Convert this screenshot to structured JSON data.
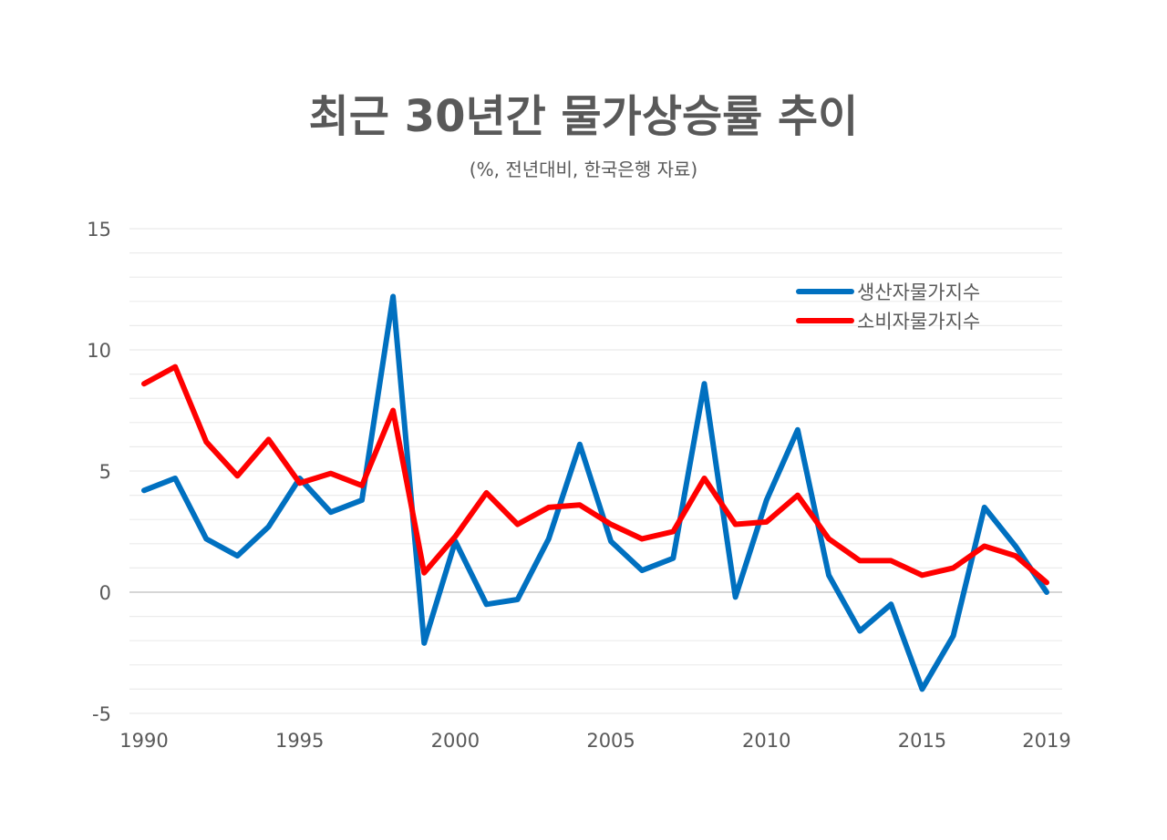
{
  "chart_data": {
    "type": "line",
    "title": "최근 30년간 물가상승률 추이",
    "subtitle": "(%, 전년대비, 한국은행 자료)",
    "xlabel": "",
    "ylabel": "",
    "x": [
      1990,
      1991,
      1992,
      1993,
      1994,
      1995,
      1996,
      1997,
      1998,
      1999,
      2000,
      2001,
      2002,
      2003,
      2004,
      2005,
      2006,
      2007,
      2008,
      2009,
      2010,
      2011,
      2012,
      2013,
      2014,
      2015,
      2016,
      2017,
      2018,
      2019
    ],
    "x_ticks": [
      "1990",
      "1995",
      "2000",
      "2005",
      "2010",
      "2015",
      "2019"
    ],
    "y_ticks": [
      "15",
      "10",
      "5",
      "0",
      "-5"
    ],
    "ylim": [
      -5,
      15
    ],
    "grid": true,
    "legend_position": "top-right",
    "series": [
      {
        "name": "생산자물가지수",
        "color": "#0070C0",
        "values": [
          4.2,
          4.7,
          2.2,
          1.5,
          2.7,
          4.7,
          3.3,
          3.8,
          12.2,
          -2.1,
          2.1,
          -0.5,
          -0.3,
          2.2,
          6.1,
          2.1,
          0.9,
          1.4,
          8.6,
          -0.2,
          3.8,
          6.7,
          0.7,
          -1.6,
          -0.5,
          -4.0,
          -1.8,
          3.5,
          1.9,
          0.0
        ]
      },
      {
        "name": "소비자물가지수",
        "color": "#FF0000",
        "values": [
          8.6,
          9.3,
          6.2,
          4.8,
          6.3,
          4.5,
          4.9,
          4.4,
          7.5,
          0.8,
          2.3,
          4.1,
          2.8,
          3.5,
          3.6,
          2.8,
          2.2,
          2.5,
          4.7,
          2.8,
          2.9,
          4.0,
          2.2,
          1.3,
          1.3,
          0.7,
          1.0,
          1.9,
          1.5,
          0.4
        ]
      }
    ]
  }
}
